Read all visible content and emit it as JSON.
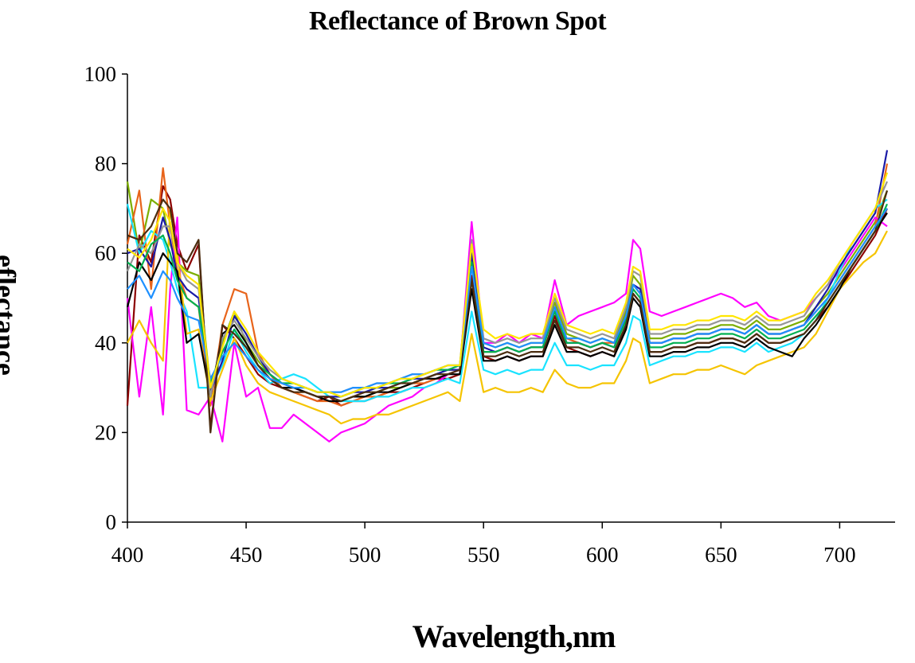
{
  "chart_data": {
    "type": "line",
    "title": "Reflectance of Brown Spot",
    "xlabel": "Wavelength,nm",
    "ylabel": "eflectance",
    "xlim": [
      400,
      722
    ],
    "ylim": [
      0,
      100
    ],
    "xticks": [
      400,
      450,
      500,
      550,
      600,
      650,
      700
    ],
    "yticks": [
      0,
      20,
      40,
      60,
      80,
      100
    ],
    "grid": false,
    "legend": "none",
    "x": [
      400,
      405,
      410,
      415,
      418,
      421,
      425,
      430,
      435,
      440,
      445,
      450,
      455,
      460,
      465,
      470,
      475,
      480,
      485,
      490,
      495,
      500,
      505,
      510,
      515,
      520,
      525,
      530,
      535,
      540,
      545,
      550,
      555,
      560,
      565,
      570,
      575,
      580,
      585,
      590,
      595,
      600,
      605,
      610,
      613,
      616,
      620,
      625,
      630,
      635,
      640,
      645,
      650,
      655,
      660,
      665,
      670,
      675,
      680,
      685,
      690,
      695,
      700,
      705,
      710,
      715,
      720
    ],
    "series": [
      {
        "values": [
          26,
          64,
          58,
          75,
          72,
          62,
          56,
          62,
          21,
          44,
          41,
          37,
          33,
          31,
          30,
          29,
          28,
          27,
          28,
          26,
          27,
          27,
          28,
          29,
          29,
          30,
          31,
          32,
          32,
          33,
          55,
          37,
          36,
          37,
          36,
          37,
          37,
          46,
          39,
          38,
          37,
          38,
          37,
          44,
          51,
          49,
          38,
          38,
          39,
          39,
          40,
          40,
          41,
          41,
          40,
          42,
          40,
          40,
          41,
          42,
          45,
          48,
          52,
          56,
          60,
          64,
          70
        ],
        "color": "#8b0000"
      },
      {
        "values": [
          76,
          60,
          72,
          70,
          62,
          58,
          56,
          55,
          30,
          40,
          47,
          40,
          36,
          33,
          31,
          30,
          29,
          28,
          27,
          27,
          28,
          28,
          29,
          30,
          30,
          31,
          32,
          33,
          34,
          34,
          60,
          40,
          39,
          40,
          39,
          40,
          40,
          49,
          42,
          41,
          40,
          41,
          40,
          47,
          55,
          53,
          41,
          41,
          42,
          42,
          43,
          43,
          44,
          44,
          43,
          45,
          43,
          43,
          44,
          45,
          48,
          51,
          55,
          59,
          63,
          67,
          74
        ],
        "color": "#7cae00"
      },
      {
        "values": [
          62,
          74,
          52,
          79,
          66,
          56,
          50,
          48,
          26,
          44,
          52,
          51,
          38,
          33,
          30,
          29,
          28,
          27,
          27,
          26,
          27,
          28,
          28,
          29,
          30,
          31,
          31,
          32,
          33,
          34,
          58,
          38,
          38,
          39,
          38,
          39,
          39,
          48,
          41,
          40,
          39,
          40,
          40,
          46,
          53,
          51,
          40,
          40,
          41,
          41,
          42,
          42,
          43,
          43,
          42,
          44,
          42,
          42,
          43,
          44,
          47,
          50,
          54,
          58,
          62,
          66,
          80
        ],
        "color": "#e8641b"
      },
      {
        "values": [
          50,
          28,
          48,
          24,
          52,
          68,
          25,
          24,
          28,
          18,
          40,
          28,
          30,
          21,
          21,
          24,
          22,
          20,
          18,
          20,
          21,
          22,
          24,
          26,
          27,
          28,
          30,
          31,
          33,
          34,
          67,
          40,
          40,
          42,
          40,
          42,
          41,
          54,
          44,
          46,
          47,
          48,
          49,
          51,
          63,
          61,
          47,
          46,
          47,
          48,
          49,
          50,
          51,
          50,
          48,
          49,
          46,
          45,
          46,
          47,
          50,
          53,
          56,
          60,
          64,
          68,
          66
        ],
        "color": "#ff00ff"
      },
      {
        "values": [
          71,
          60,
          65,
          63,
          58,
          52,
          47,
          30,
          30,
          35,
          43,
          38,
          34,
          31,
          32,
          33,
          32,
          30,
          28,
          27,
          27,
          27,
          28,
          28,
          29,
          30,
          30,
          31,
          32,
          31,
          47,
          34,
          33,
          34,
          33,
          34,
          34,
          40,
          35,
          35,
          34,
          35,
          35,
          40,
          46,
          45,
          35,
          36,
          37,
          37,
          38,
          38,
          39,
          39,
          38,
          40,
          38,
          39,
          40,
          42,
          45,
          50,
          56,
          62,
          66,
          70,
          72
        ],
        "color": "#19e3ff"
      },
      {
        "values": [
          40,
          45,
          40,
          36,
          70,
          60,
          42,
          43,
          27,
          34,
          41,
          35,
          31,
          29,
          28,
          27,
          26,
          25,
          24,
          22,
          23,
          23,
          24,
          24,
          25,
          26,
          27,
          28,
          29,
          27,
          42,
          29,
          30,
          29,
          29,
          30,
          29,
          34,
          31,
          30,
          30,
          31,
          31,
          36,
          41,
          40,
          31,
          32,
          33,
          33,
          34,
          34,
          35,
          34,
          33,
          35,
          36,
          37,
          38,
          39,
          42,
          47,
          52,
          55,
          58,
          60,
          65
        ],
        "color": "#f5c400"
      },
      {
        "values": [
          60,
          61,
          57,
          68,
          63,
          55,
          52,
          50,
          29,
          36,
          46,
          42,
          37,
          33,
          31,
          30,
          29,
          28,
          28,
          28,
          29,
          29,
          30,
          30,
          31,
          32,
          32,
          33,
          34,
          34,
          60,
          39,
          38,
          39,
          38,
          39,
          39,
          47,
          40,
          40,
          39,
          40,
          39,
          46,
          53,
          52,
          40,
          40,
          41,
          41,
          42,
          42,
          43,
          43,
          42,
          44,
          42,
          42,
          43,
          44,
          48,
          52,
          57,
          61,
          65,
          69,
          83
        ],
        "color": "#1a1aa6"
      },
      {
        "values": [
          48,
          58,
          54,
          60,
          58,
          56,
          40,
          42,
          28,
          42,
          44,
          40,
          35,
          32,
          30,
          30,
          29,
          28,
          27,
          27,
          28,
          28,
          29,
          29,
          30,
          31,
          32,
          32,
          33,
          33,
          52,
          36,
          36,
          37,
          36,
          37,
          37,
          44,
          38,
          38,
          37,
          38,
          37,
          43,
          50,
          48,
          37,
          37,
          38,
          38,
          39,
          39,
          40,
          40,
          39,
          41,
          39,
          38,
          37,
          41,
          44,
          48,
          52,
          57,
          61,
          65,
          69
        ],
        "color": "#000000"
      },
      {
        "values": [
          56,
          62,
          60,
          66,
          66,
          58,
          54,
          52,
          28,
          41,
          45,
          41,
          37,
          34,
          32,
          31,
          30,
          29,
          29,
          29,
          30,
          30,
          31,
          31,
          32,
          33,
          33,
          34,
          35,
          35,
          63,
          41,
          40,
          41,
          40,
          41,
          41,
          50,
          43,
          42,
          41,
          42,
          41,
          48,
          56,
          55,
          42,
          42,
          43,
          43,
          44,
          44,
          45,
          45,
          44,
          46,
          44,
          44,
          45,
          46,
          50,
          53,
          58,
          62,
          66,
          70,
          76
        ],
        "color": "#969696"
      },
      {
        "values": [
          58,
          56,
          62,
          64,
          60,
          54,
          50,
          48,
          31,
          38,
          43,
          39,
          35,
          33,
          31,
          31,
          30,
          29,
          29,
          28,
          29,
          30,
          30,
          31,
          31,
          32,
          33,
          34,
          34,
          35,
          58,
          38,
          38,
          39,
          38,
          39,
          39,
          47,
          40,
          40,
          39,
          40,
          39,
          45,
          52,
          50,
          39,
          39,
          40,
          40,
          41,
          41,
          42,
          42,
          41,
          43,
          41,
          41,
          42,
          43,
          46,
          49,
          53,
          57,
          61,
          65,
          71
        ],
        "color": "#00b050"
      },
      {
        "values": [
          64,
          63,
          66,
          72,
          70,
          60,
          58,
          63,
          20,
          44,
          42,
          39,
          35,
          32,
          30,
          29,
          29,
          28,
          28,
          27,
          28,
          29,
          29,
          30,
          31,
          31,
          32,
          33,
          33,
          34,
          54,
          37,
          37,
          38,
          37,
          38,
          38,
          45,
          39,
          39,
          38,
          39,
          38,
          44,
          51,
          49,
          38,
          38,
          39,
          39,
          40,
          40,
          41,
          41,
          40,
          42,
          40,
          40,
          41,
          42,
          45,
          49,
          53,
          57,
          61,
          65,
          74
        ],
        "color": "#4b2d10"
      },
      {
        "values": [
          52,
          55,
          50,
          56,
          54,
          50,
          46,
          45,
          32,
          37,
          40,
          37,
          34,
          32,
          31,
          30,
          30,
          29,
          29,
          29,
          30,
          30,
          31,
          31,
          32,
          33,
          33,
          34,
          35,
          35,
          57,
          40,
          39,
          40,
          39,
          40,
          40,
          48,
          41,
          41,
          40,
          41,
          40,
          46,
          53,
          51,
          40,
          40,
          41,
          41,
          42,
          42,
          43,
          43,
          42,
          44,
          42,
          42,
          43,
          44,
          47,
          50,
          54,
          58,
          62,
          66,
          70
        ],
        "color": "#1e90ff"
      },
      {
        "values": [
          61,
          59,
          63,
          70,
          67,
          58,
          55,
          53,
          30,
          39,
          47,
          43,
          38,
          35,
          32,
          31,
          30,
          29,
          29,
          28,
          29,
          30,
          30,
          31,
          32,
          32,
          33,
          34,
          35,
          35,
          62,
          43,
          41,
          42,
          41,
          42,
          42,
          51,
          44,
          43,
          42,
          43,
          42,
          49,
          57,
          56,
          43,
          43,
          44,
          44,
          45,
          45,
          46,
          46,
          45,
          47,
          45,
          45,
          46,
          47,
          51,
          54,
          58,
          62,
          66,
          70,
          78
        ],
        "color": "#ffe600"
      }
    ]
  }
}
